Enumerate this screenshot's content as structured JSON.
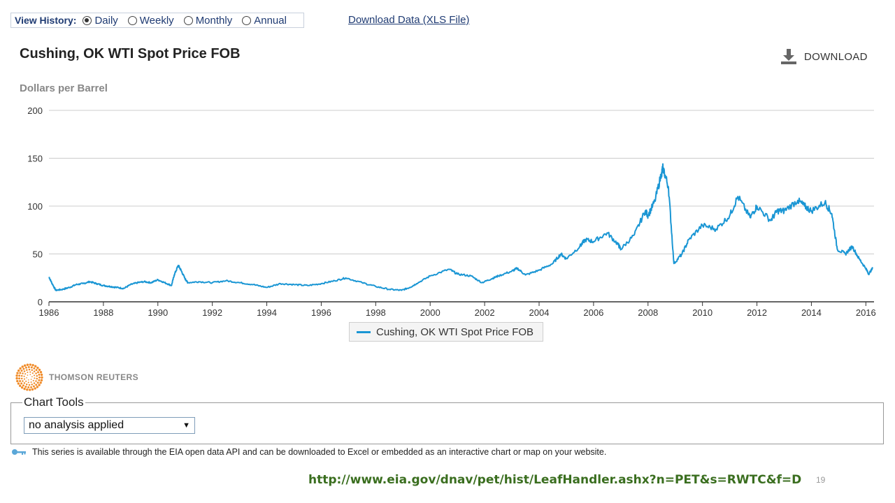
{
  "history": {
    "label": "View History:",
    "options": [
      {
        "label": "Daily",
        "checked": true
      },
      {
        "label": "Weekly",
        "checked": false
      },
      {
        "label": "Monthly",
        "checked": false
      },
      {
        "label": "Annual",
        "checked": false
      }
    ]
  },
  "download_link": "Download Data (XLS File)",
  "download_button": {
    "label": "DOWNLOAD",
    "icon": "download-icon"
  },
  "branding": {
    "name": "THOMSON REUTERS",
    "icon": "thomson-reuters-logo"
  },
  "chart_tools": {
    "title": "Chart Tools",
    "select_value": "no analysis applied",
    "arrow": "▼"
  },
  "api_note": "This series is available through the EIA open data API and can be downloaded to Excel or embedded as an interactive chart or map on your website.",
  "footer": {
    "url": "http://www.eia.gov/dnav/pet/hist/LeafHandler.ashx?n=PET&s=RWTC&f=D",
    "page": "19"
  },
  "chart_data": {
    "type": "line",
    "title": "Cushing, OK WTI Spot Price FOB",
    "ylabel": "Dollars per Barrel",
    "xlabel": "",
    "xlim": [
      1986.0,
      2016.3
    ],
    "ylim": [
      0,
      200
    ],
    "yticks": [
      0,
      50,
      100,
      150,
      200
    ],
    "xticks": [
      1986,
      1988,
      1990,
      1992,
      1994,
      1996,
      1998,
      2000,
      2002,
      2004,
      2006,
      2008,
      2010,
      2012,
      2014,
      2016
    ],
    "grid": true,
    "legend_position": "bottom-center",
    "color": "#1a96d4",
    "series": [
      {
        "name": "Cushing, OK WTI Spot Price FOB",
        "x": [
          1986.0,
          1986.1,
          1986.25,
          1986.5,
          1986.75,
          1987.0,
          1987.25,
          1987.5,
          1987.75,
          1988.0,
          1988.25,
          1988.5,
          1988.75,
          1989.0,
          1989.25,
          1989.5,
          1989.75,
          1990.0,
          1990.25,
          1990.5,
          1990.6,
          1990.75,
          1990.85,
          1991.0,
          1991.1,
          1991.5,
          1992.0,
          1992.5,
          1993.0,
          1993.5,
          1994.0,
          1994.5,
          1995.0,
          1995.5,
          1996.0,
          1996.5,
          1996.9,
          1997.5,
          1998.0,
          1998.5,
          1998.95,
          1999.25,
          1999.5,
          2000.0,
          2000.7,
          2001.0,
          2001.5,
          2001.9,
          2002.25,
          2002.5,
          2003.0,
          2003.2,
          2003.5,
          2004.0,
          2004.5,
          2004.8,
          2005.0,
          2005.5,
          2005.7,
          2006.0,
          2006.5,
          2006.9,
          2007.0,
          2007.5,
          2007.9,
          2008.0,
          2008.25,
          2008.5,
          2008.55,
          2008.75,
          2008.95,
          2009.25,
          2009.5,
          2010.0,
          2010.5,
          2011.0,
          2011.3,
          2011.75,
          2012.0,
          2012.5,
          2012.75,
          2013.0,
          2013.5,
          2013.75,
          2014.0,
          2014.5,
          2014.75,
          2014.95,
          2015.25,
          2015.5,
          2015.75,
          2016.0,
          2016.1,
          2016.25
        ],
        "values": [
          26,
          20,
          12,
          13,
          15,
          18,
          19,
          21,
          19,
          17,
          16,
          15,
          14,
          18,
          20,
          21,
          20,
          23,
          20,
          17,
          28,
          38,
          33,
          24,
          20,
          21,
          20,
          22,
          20,
          18,
          15,
          19,
          18,
          17,
          19,
          22,
          25,
          20,
          16,
          13,
          12,
          15,
          19,
          27,
          34,
          29,
          27,
          20,
          24,
          27,
          32,
          35,
          28,
          33,
          40,
          50,
          45,
          58,
          65,
          63,
          72,
          60,
          55,
          70,
          95,
          90,
          105,
          135,
          140,
          120,
          40,
          50,
          65,
          80,
          76,
          90,
          110,
          88,
          100,
          85,
          95,
          95,
          106,
          100,
          95,
          104,
          92,
          55,
          50,
          58,
          45,
          35,
          29,
          35
        ]
      }
    ]
  }
}
